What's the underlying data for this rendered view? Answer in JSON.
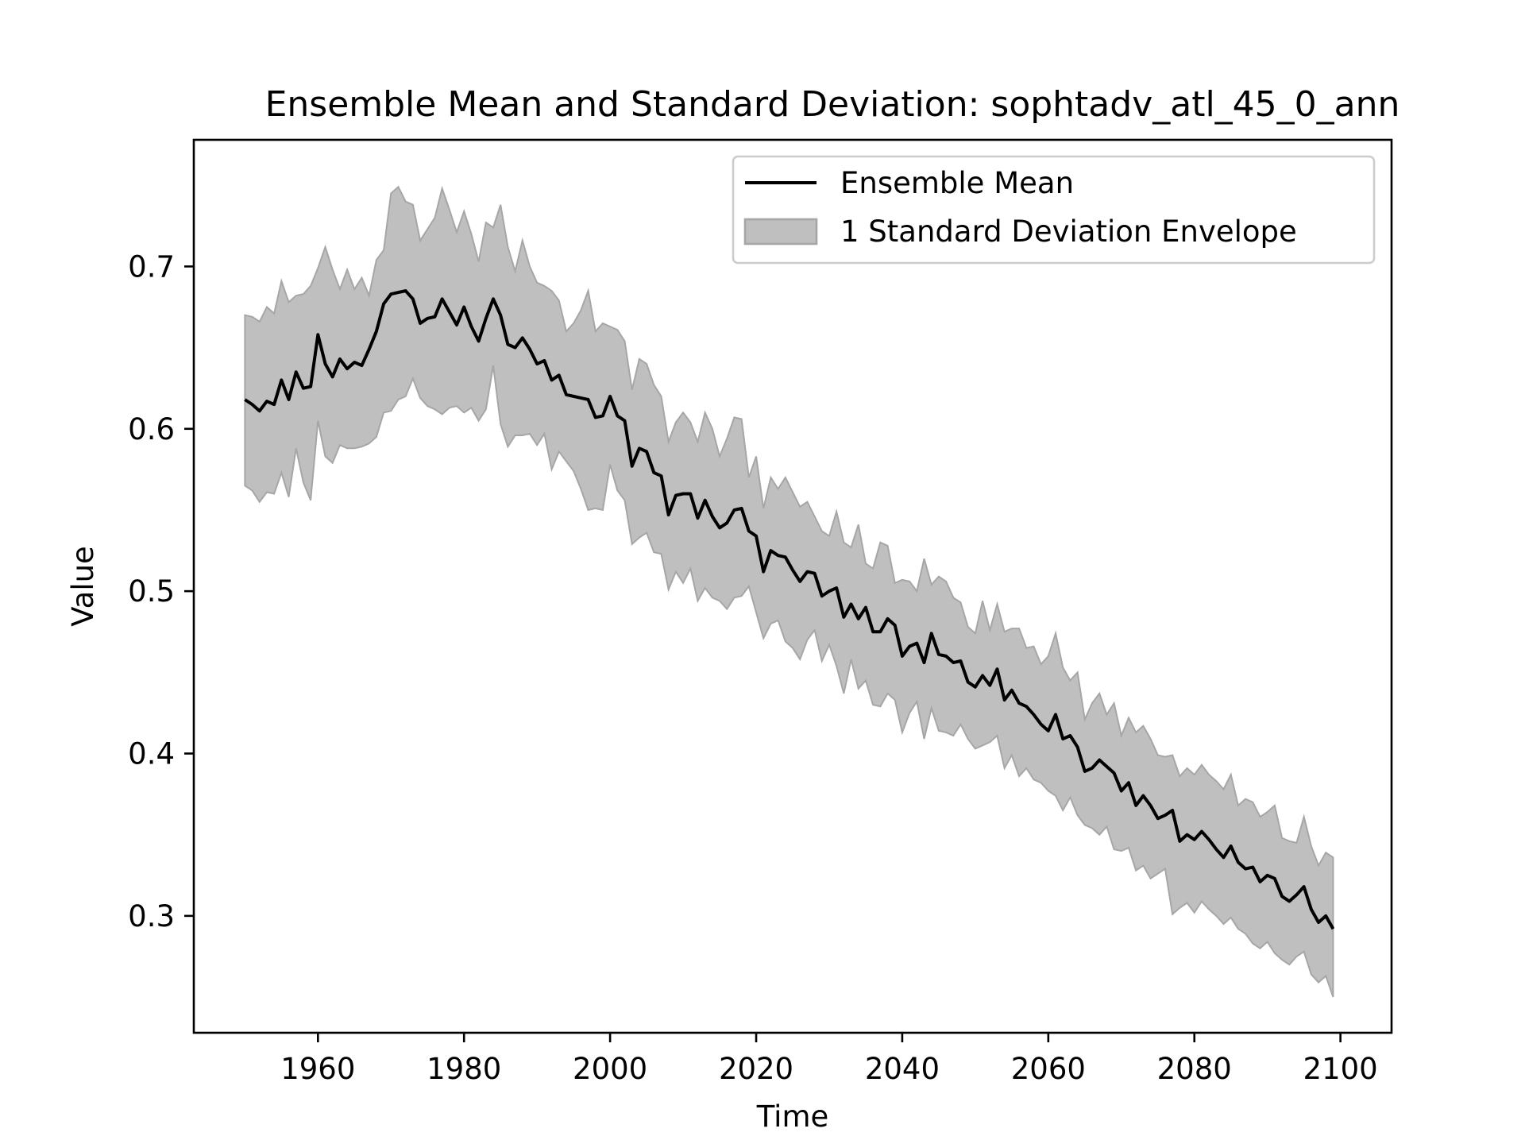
{
  "chart_data": {
    "type": "line",
    "title": "Ensemble Mean and Standard Deviation: sophtadv_atl_45_0_ann",
    "xlabel": "Time",
    "ylabel": "Value",
    "xlim": [
      1943,
      2107
    ],
    "ylim": [
      0.228,
      0.778
    ],
    "x_ticks": [
      1960,
      1980,
      2000,
      2020,
      2040,
      2060,
      2080,
      2100
    ],
    "y_ticks": [
      0.3,
      0.4,
      0.5,
      0.6,
      0.7
    ],
    "x_tick_labels": [
      "1960",
      "1980",
      "2000",
      "2020",
      "2040",
      "2060",
      "2080",
      "2100"
    ],
    "y_tick_labels": [
      "0.3",
      "0.4",
      "0.5",
      "0.6",
      "0.7"
    ],
    "grid": false,
    "legend_position": "top-right",
    "x_start": 1950,
    "x_step": 1,
    "series": [
      {
        "name": "Ensemble Mean",
        "color": "#000000",
        "values": [
          0.618,
          0.615,
          0.611,
          0.617,
          0.615,
          0.63,
          0.618,
          0.635,
          0.625,
          0.626,
          0.658,
          0.64,
          0.632,
          0.643,
          0.637,
          0.641,
          0.639,
          0.649,
          0.66,
          0.677,
          0.683,
          0.684,
          0.685,
          0.68,
          0.665,
          0.668,
          0.669,
          0.68,
          0.672,
          0.664,
          0.675,
          0.663,
          0.654,
          0.668,
          0.68,
          0.67,
          0.652,
          0.65,
          0.656,
          0.649,
          0.64,
          0.642,
          0.63,
          0.633,
          0.621,
          0.62,
          0.619,
          0.618,
          0.607,
          0.608,
          0.62,
          0.608,
          0.605,
          0.577,
          0.588,
          0.586,
          0.573,
          0.571,
          0.547,
          0.559,
          0.56,
          0.56,
          0.545,
          0.556,
          0.546,
          0.539,
          0.542,
          0.55,
          0.551,
          0.537,
          0.534,
          0.512,
          0.525,
          0.522,
          0.521,
          0.513,
          0.506,
          0.512,
          0.511,
          0.497,
          0.5,
          0.502,
          0.484,
          0.492,
          0.483,
          0.49,
          0.475,
          0.475,
          0.483,
          0.479,
          0.46,
          0.466,
          0.468,
          0.456,
          0.474,
          0.461,
          0.46,
          0.456,
          0.457,
          0.444,
          0.441,
          0.448,
          0.442,
          0.452,
          0.433,
          0.439,
          0.431,
          0.429,
          0.424,
          0.418,
          0.414,
          0.424,
          0.409,
          0.411,
          0.404,
          0.389,
          0.391,
          0.396,
          0.392,
          0.388,
          0.377,
          0.382,
          0.368,
          0.374,
          0.368,
          0.36,
          0.362,
          0.365,
          0.346,
          0.35,
          0.347,
          0.352,
          0.347,
          0.341,
          0.336,
          0.343,
          0.333,
          0.329,
          0.33,
          0.321,
          0.325,
          0.323,
          0.312,
          0.309,
          0.313,
          0.318,
          0.304,
          0.296,
          0.3,
          0.292
        ]
      }
    ],
    "envelope": {
      "name": "1 Standard Deviation Envelope",
      "fill": "#bfbfbf",
      "stroke": "#a6a6a6",
      "upper": [
        0.67,
        0.669,
        0.666,
        0.675,
        0.671,
        0.691,
        0.678,
        0.682,
        0.683,
        0.688,
        0.699,
        0.712,
        0.698,
        0.686,
        0.698,
        0.686,
        0.693,
        0.682,
        0.704,
        0.71,
        0.745,
        0.749,
        0.74,
        0.738,
        0.716,
        0.723,
        0.73,
        0.748,
        0.735,
        0.721,
        0.734,
        0.72,
        0.703,
        0.727,
        0.724,
        0.738,
        0.712,
        0.697,
        0.716,
        0.7,
        0.69,
        0.688,
        0.685,
        0.679,
        0.66,
        0.665,
        0.673,
        0.685,
        0.66,
        0.665,
        0.663,
        0.661,
        0.654,
        0.624,
        0.643,
        0.64,
        0.627,
        0.62,
        0.592,
        0.604,
        0.61,
        0.604,
        0.592,
        0.61,
        0.6,
        0.583,
        0.594,
        0.607,
        0.606,
        0.57,
        0.583,
        0.551,
        0.57,
        0.563,
        0.57,
        0.561,
        0.552,
        0.555,
        0.546,
        0.537,
        0.534,
        0.549,
        0.53,
        0.527,
        0.541,
        0.517,
        0.514,
        0.53,
        0.528,
        0.505,
        0.507,
        0.506,
        0.5,
        0.52,
        0.504,
        0.509,
        0.506,
        0.496,
        0.493,
        0.478,
        0.474,
        0.494,
        0.476,
        0.492,
        0.475,
        0.477,
        0.477,
        0.465,
        0.466,
        0.455,
        0.46,
        0.474,
        0.453,
        0.445,
        0.45,
        0.421,
        0.431,
        0.437,
        0.424,
        0.431,
        0.411,
        0.422,
        0.413,
        0.417,
        0.409,
        0.399,
        0.398,
        0.399,
        0.386,
        0.391,
        0.387,
        0.393,
        0.387,
        0.383,
        0.378,
        0.387,
        0.368,
        0.372,
        0.37,
        0.361,
        0.364,
        0.368,
        0.348,
        0.346,
        0.345,
        0.361,
        0.343,
        0.331,
        0.339,
        0.336
      ],
      "lower": [
        0.565,
        0.562,
        0.555,
        0.561,
        0.56,
        0.573,
        0.558,
        0.588,
        0.567,
        0.556,
        0.605,
        0.583,
        0.579,
        0.59,
        0.588,
        0.588,
        0.589,
        0.591,
        0.595,
        0.61,
        0.611,
        0.618,
        0.62,
        0.631,
        0.619,
        0.614,
        0.612,
        0.609,
        0.613,
        0.614,
        0.61,
        0.613,
        0.605,
        0.612,
        0.639,
        0.603,
        0.589,
        0.596,
        0.596,
        0.597,
        0.59,
        0.597,
        0.575,
        0.586,
        0.58,
        0.574,
        0.563,
        0.55,
        0.551,
        0.55,
        0.578,
        0.562,
        0.556,
        0.529,
        0.533,
        0.536,
        0.524,
        0.523,
        0.501,
        0.512,
        0.505,
        0.514,
        0.494,
        0.502,
        0.496,
        0.494,
        0.489,
        0.496,
        0.497,
        0.503,
        0.487,
        0.471,
        0.48,
        0.482,
        0.469,
        0.465,
        0.458,
        0.47,
        0.476,
        0.457,
        0.467,
        0.454,
        0.437,
        0.458,
        0.44,
        0.445,
        0.43,
        0.429,
        0.437,
        0.433,
        0.413,
        0.425,
        0.432,
        0.409,
        0.428,
        0.414,
        0.413,
        0.411,
        0.418,
        0.409,
        0.403,
        0.405,
        0.407,
        0.411,
        0.391,
        0.399,
        0.386,
        0.391,
        0.384,
        0.382,
        0.377,
        0.374,
        0.365,
        0.373,
        0.362,
        0.356,
        0.354,
        0.35,
        0.355,
        0.341,
        0.34,
        0.342,
        0.328,
        0.331,
        0.323,
        0.326,
        0.329,
        0.301,
        0.305,
        0.308,
        0.302,
        0.309,
        0.304,
        0.3,
        0.295,
        0.299,
        0.292,
        0.289,
        0.283,
        0.28,
        0.284,
        0.277,
        0.273,
        0.27,
        0.275,
        0.278,
        0.264,
        0.259,
        0.263,
        0.25
      ]
    }
  },
  "legend": {
    "mean_label": "Ensemble Mean",
    "envelope_label": "1 Standard Deviation Envelope"
  }
}
